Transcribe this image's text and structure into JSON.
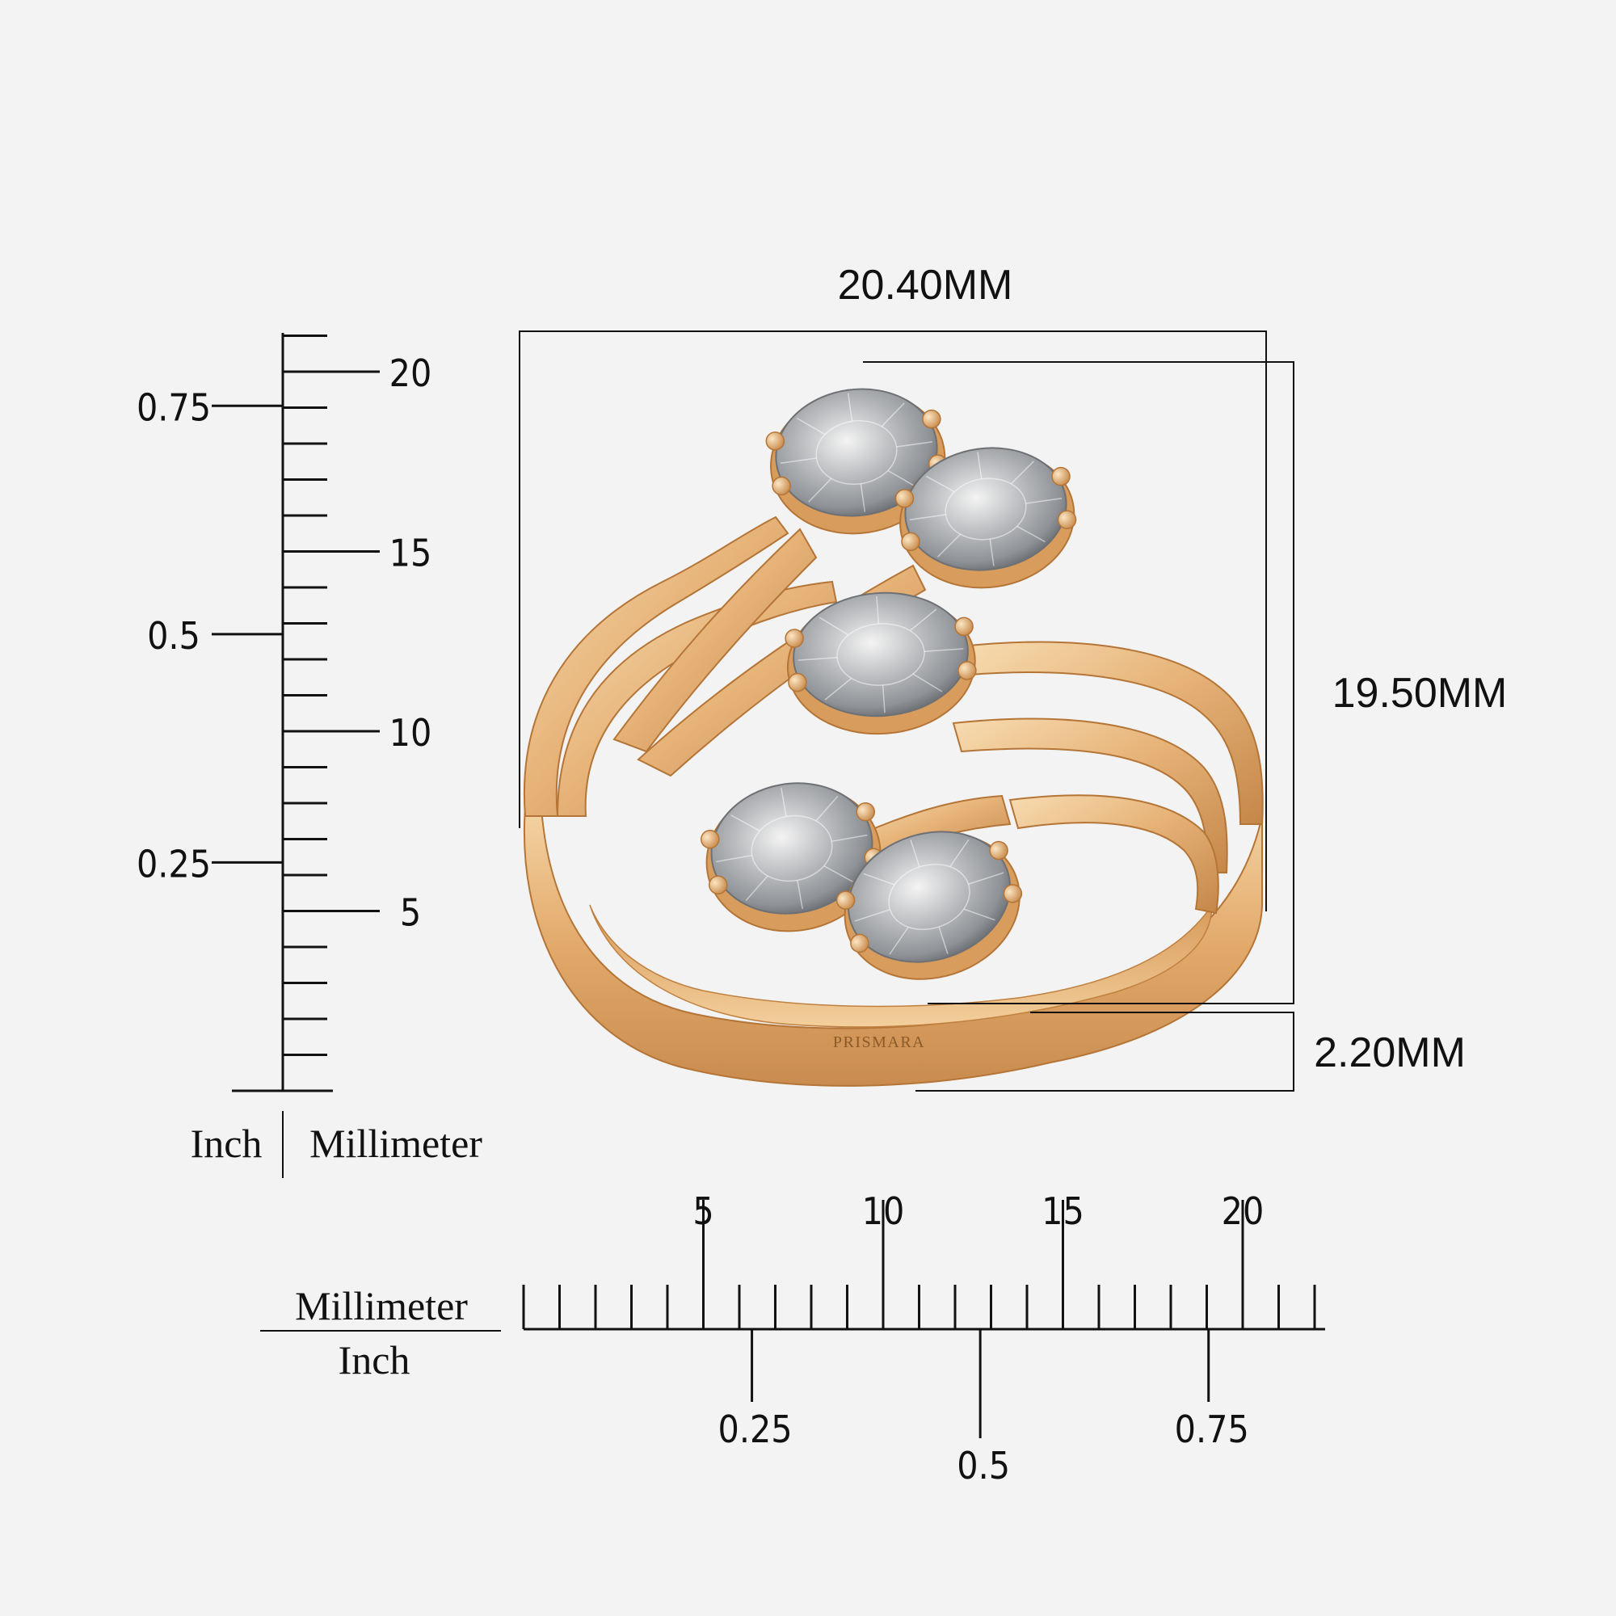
{
  "dimensions": {
    "width_label": "20.40MM",
    "height_label": "19.50MM",
    "band_label": "2.20MM"
  },
  "engraving": "PRISMARA",
  "colors": {
    "background": "#f3f3f3",
    "gold_light": "#f3cf9c",
    "gold_mid": "#e2aa6b",
    "gold_dark": "#b97a3c",
    "stone_light": "#eeeeee",
    "stone_dark": "#8f9296",
    "line": "#111111"
  },
  "vertical_scale": {
    "unit_left": "Inch",
    "unit_right": "Millimeter",
    "mm_labels": [
      "5",
      "10",
      "15",
      "20"
    ],
    "inch_labels": [
      "0.25",
      "0.5",
      "0.75"
    ]
  },
  "horizontal_scale": {
    "unit_top": "Millimeter",
    "unit_bottom": "Inch",
    "mm_labels": [
      "5",
      "10",
      "15",
      "20"
    ],
    "inch_labels": [
      "0.25",
      "0.5",
      "0.75"
    ]
  },
  "stones": [
    {
      "name": "stone-1",
      "shape": "oval"
    },
    {
      "name": "stone-2",
      "shape": "oval"
    },
    {
      "name": "stone-3",
      "shape": "oval"
    },
    {
      "name": "stone-4",
      "shape": "oval"
    },
    {
      "name": "stone-5",
      "shape": "oval"
    }
  ]
}
